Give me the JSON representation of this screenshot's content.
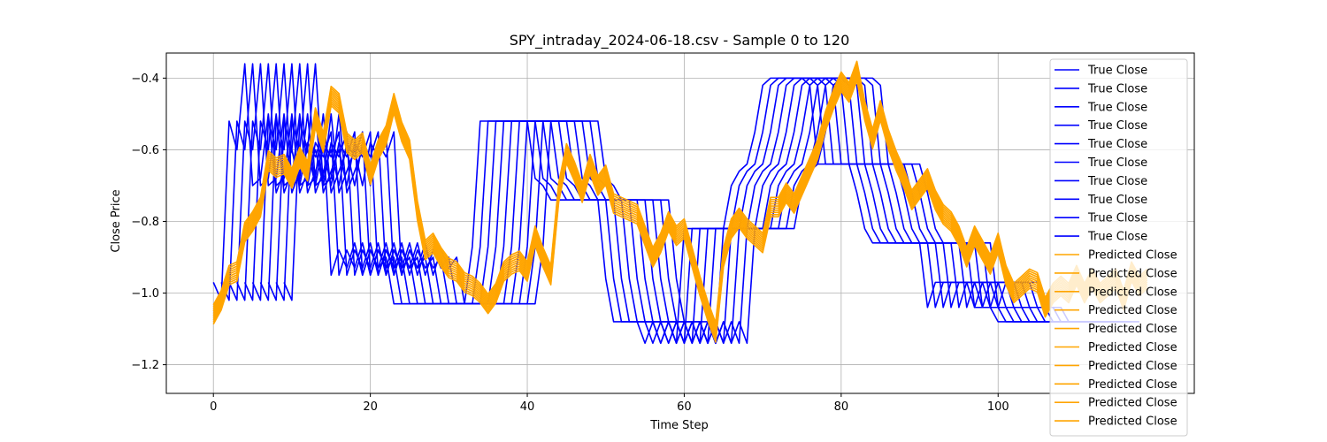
{
  "chart_data": {
    "type": "line",
    "title": "SPY_intraday_2024-06-18.csv - Sample 0 to 120",
    "xlabel": "Time Step",
    "ylabel": "Close Price",
    "xlim": [
      -6,
      125
    ],
    "ylim": [
      -1.28,
      -0.33
    ],
    "xticks": [
      0,
      20,
      40,
      60,
      80,
      100
    ],
    "yticks": [
      -1.2,
      -1.0,
      -0.8,
      -0.6,
      -0.4
    ],
    "grid": true,
    "legend_position": "right",
    "colors": {
      "true": "#0000ff",
      "pred": "#ffa500"
    },
    "true_shift_step": 1,
    "pred_offset_step": 0.006,
    "true_base": {
      "x": [
        0,
        1,
        2,
        3,
        4,
        5,
        6,
        7,
        8,
        9,
        10,
        11,
        12,
        13,
        14,
        15,
        16,
        17,
        18,
        19,
        20,
        21,
        22,
        23,
        24,
        25,
        26,
        27,
        28,
        29,
        30,
        31,
        32,
        33,
        34,
        35,
        36,
        37,
        38,
        39,
        40,
        41,
        42,
        43,
        44,
        45,
        46,
        47,
        48,
        49,
        50,
        51,
        52,
        53,
        54,
        55,
        56,
        57,
        58,
        59,
        60,
        61,
        62,
        63,
        64,
        65,
        66,
        67,
        68,
        69,
        70,
        71,
        72,
        73,
        74,
        75,
        76,
        77,
        78,
        79,
        80,
        81,
        82,
        83,
        84,
        85,
        86,
        87,
        88,
        89,
        90,
        91,
        92,
        93,
        94,
        95,
        96,
        97,
        98,
        99,
        100,
        101,
        102,
        103,
        104,
        105,
        106,
        107,
        108,
        109
      ],
      "y": [
        -0.97,
        -1.02,
        -0.52,
        -0.6,
        -0.36,
        -0.7,
        -0.68,
        -0.5,
        -0.72,
        -0.66,
        -0.6,
        -0.7,
        -0.58,
        -0.62,
        -0.55,
        -0.95,
        -0.88,
        -0.93,
        -0.86,
        -0.95,
        -0.88,
        -0.93,
        -0.9,
        -1.03,
        -1.03,
        -1.03,
        -1.03,
        -1.03,
        -1.03,
        -1.03,
        -1.03,
        -1.03,
        -1.03,
        -0.87,
        -0.52,
        -0.52,
        -0.52,
        -0.52,
        -0.52,
        -0.52,
        -0.52,
        -0.68,
        -0.7,
        -0.74,
        -0.74,
        -0.74,
        -0.74,
        -0.74,
        -0.74,
        -0.74,
        -0.96,
        -1.08,
        -1.08,
        -1.08,
        -1.08,
        -1.14,
        -1.08,
        -1.14,
        -1.08,
        -1.14,
        -0.82,
        -0.82,
        -0.82,
        -0.82,
        -0.82,
        -0.82,
        -0.7,
        -0.66,
        -0.64,
        -0.55,
        -0.42,
        -0.4,
        -0.4,
        -0.4,
        -0.4,
        -0.4,
        -0.42,
        -0.64,
        -0.64,
        -0.64,
        -0.64,
        -0.64,
        -0.72,
        -0.82,
        -0.86,
        -0.86,
        -0.86,
        -0.86,
        -0.86,
        -0.86,
        -0.86,
        -1.04,
        -0.97,
        -0.97,
        -0.97,
        -0.97,
        -0.97,
        -1.04,
        -1.04,
        -1.04,
        -1.08,
        -1.08,
        -1.08,
        -1.08,
        -1.08,
        -1.08,
        -1.08,
        -1.08,
        -1.08,
        -1.08
      ]
    },
    "pred_base": {
      "x": [
        0,
        1,
        2,
        3,
        4,
        5,
        6,
        7,
        8,
        9,
        10,
        11,
        12,
        13,
        14,
        15,
        16,
        17,
        18,
        19,
        20,
        21,
        22,
        23,
        24,
        25,
        26,
        27,
        28,
        29,
        30,
        31,
        32,
        33,
        34,
        35,
        36,
        37,
        38,
        39,
        40,
        41,
        42,
        43,
        44,
        45,
        46,
        47,
        48,
        49,
        50,
        51,
        52,
        53,
        54,
        55,
        56,
        57,
        58,
        59,
        60,
        61,
        62,
        63,
        64,
        65,
        66,
        67,
        68,
        69,
        70,
        71,
        72,
        73,
        74,
        75,
        76,
        77,
        78,
        79,
        80,
        81,
        82,
        83,
        84,
        85,
        86,
        87,
        88,
        89,
        90,
        91,
        92,
        93,
        94,
        95,
        96,
        97,
        98,
        99,
        100,
        101,
        102,
        103,
        104,
        105,
        106,
        107,
        108,
        109,
        110,
        111,
        112,
        113,
        114,
        115,
        116,
        117,
        118,
        119
      ],
      "y": [
        -1.06,
        -1.02,
        -0.95,
        -0.94,
        -0.83,
        -0.8,
        -0.76,
        -0.63,
        -0.65,
        -0.64,
        -0.68,
        -0.62,
        -0.66,
        -0.51,
        -0.58,
        -0.45,
        -0.47,
        -0.58,
        -0.6,
        -0.58,
        -0.67,
        -0.6,
        -0.56,
        -0.47,
        -0.55,
        -0.6,
        -0.77,
        -0.88,
        -0.86,
        -0.9,
        -0.93,
        -0.94,
        -0.97,
        -0.98,
        -1.0,
        -1.03,
        -1.0,
        -0.94,
        -0.92,
        -0.91,
        -0.94,
        -0.84,
        -0.9,
        -0.95,
        -0.72,
        -0.61,
        -0.66,
        -0.72,
        -0.64,
        -0.7,
        -0.67,
        -0.75,
        -0.76,
        -0.77,
        -0.78,
        -0.84,
        -0.9,
        -0.86,
        -0.8,
        -0.84,
        -0.82,
        -0.9,
        -0.98,
        -1.05,
        -1.11,
        -0.9,
        -0.82,
        -0.79,
        -0.82,
        -0.84,
        -0.86,
        -0.76,
        -0.76,
        -0.72,
        -0.75,
        -0.7,
        -0.65,
        -0.6,
        -0.52,
        -0.46,
        -0.41,
        -0.44,
        -0.38,
        -0.49,
        -0.57,
        -0.49,
        -0.57,
        -0.63,
        -0.68,
        -0.74,
        -0.71,
        -0.68,
        -0.74,
        -0.78,
        -0.8,
        -0.84,
        -0.9,
        -0.84,
        -0.88,
        -0.92,
        -0.86,
        -0.95,
        -1.0,
        -0.98,
        -0.96,
        -0.97,
        -1.04,
        -1.0,
        -0.98,
        -1.0,
        -0.95,
        -1.0,
        -0.96,
        -1.0,
        -0.98,
        -0.96,
        -1.02,
        -0.94,
        -0.98,
        -0.96
      ]
    },
    "series": [
      {
        "name": "True Close",
        "kind": "true"
      },
      {
        "name": "True Close",
        "kind": "true"
      },
      {
        "name": "True Close",
        "kind": "true"
      },
      {
        "name": "True Close",
        "kind": "true"
      },
      {
        "name": "True Close",
        "kind": "true"
      },
      {
        "name": "True Close",
        "kind": "true"
      },
      {
        "name": "True Close",
        "kind": "true"
      },
      {
        "name": "True Close",
        "kind": "true"
      },
      {
        "name": "True Close",
        "kind": "true"
      },
      {
        "name": "True Close",
        "kind": "true"
      },
      {
        "name": "Predicted Close",
        "kind": "pred"
      },
      {
        "name": "Predicted Close",
        "kind": "pred"
      },
      {
        "name": "Predicted Close",
        "kind": "pred"
      },
      {
        "name": "Predicted Close",
        "kind": "pred"
      },
      {
        "name": "Predicted Close",
        "kind": "pred"
      },
      {
        "name": "Predicted Close",
        "kind": "pred"
      },
      {
        "name": "Predicted Close",
        "kind": "pred"
      },
      {
        "name": "Predicted Close",
        "kind": "pred"
      },
      {
        "name": "Predicted Close",
        "kind": "pred"
      },
      {
        "name": "Predicted Close",
        "kind": "pred"
      }
    ]
  }
}
